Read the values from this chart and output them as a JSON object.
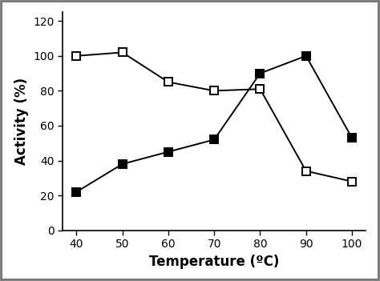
{
  "x": [
    40,
    50,
    60,
    70,
    80,
    90,
    100
  ],
  "series1_y": [
    100,
    102,
    85,
    80,
    81,
    34,
    28
  ],
  "series1_marker": "s",
  "series1_markerfacecolor": "white",
  "series1_markeredgecolor": "black",
  "series1_linecolor": "black",
  "series2_y": [
    22,
    38,
    45,
    52,
    90,
    100,
    53
  ],
  "series2_marker": "s",
  "series2_markerfacecolor": "black",
  "series2_markeredgecolor": "black",
  "series2_linecolor": "black",
  "xlabel": "Temperature (ºC)",
  "ylabel": "Activity (%)",
  "xlim": [
    37,
    103
  ],
  "ylim": [
    0,
    125
  ],
  "xticks": [
    40,
    50,
    60,
    70,
    80,
    90,
    100
  ],
  "yticks": [
    0,
    20,
    40,
    60,
    80,
    100,
    120
  ],
  "markersize": 7,
  "linewidth": 1.4,
  "markeredgewidth": 1.4,
  "xlabel_fontsize": 12,
  "ylabel_fontsize": 12,
  "tick_fontsize": 10,
  "figure_facecolor": "white",
  "plot_facecolor": "white",
  "border_color": "#888888"
}
